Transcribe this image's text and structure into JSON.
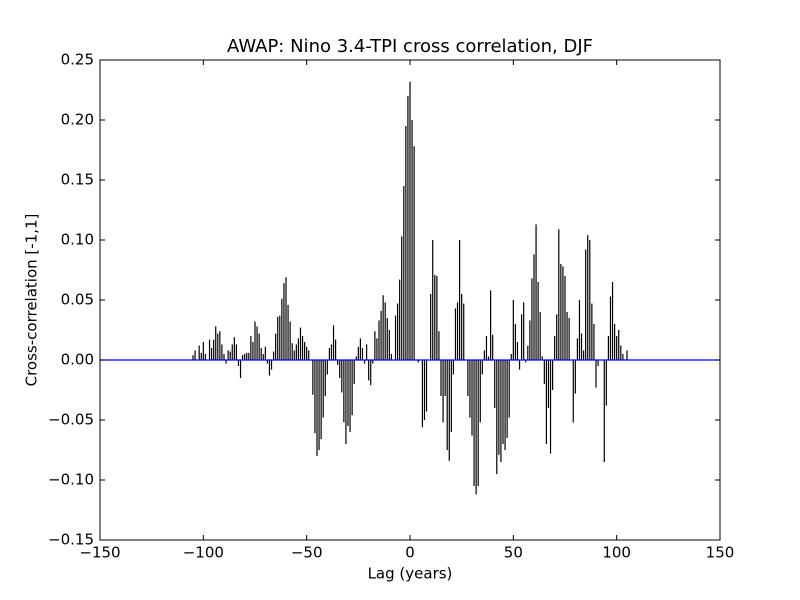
{
  "chart_data": {
    "type": "vlines",
    "title": "AWAP: Nino 3.4-TPI cross correlation, DJF",
    "xlabel": "Lag (years)",
    "ylabel": "Cross-correlation [-1,1]",
    "xlim": [
      -150,
      150
    ],
    "ylim": [
      -0.15,
      0.25
    ],
    "xticks": [
      {
        "value": -150,
        "label": "−150"
      },
      {
        "value": -100,
        "label": "−100"
      },
      {
        "value": -50,
        "label": "−50"
      },
      0,
      50,
      100,
      150
    ],
    "yticks": [
      {
        "value": -0.15,
        "label": "−0.15"
      },
      {
        "value": -0.1,
        "label": "−0.10"
      },
      {
        "value": -0.05,
        "label": "−0.05"
      },
      {
        "value": 0,
        "label": "0.00"
      },
      0.05,
      {
        "value": 0.1,
        "label": "0.10"
      },
      0.15,
      {
        "value": 0.2,
        "label": "0.20"
      },
      0.25
    ],
    "baseline_color": "#0000ff",
    "series": [
      {
        "color": "#000000",
        "x": [
          -105,
          -104,
          -103,
          -102,
          -101,
          -100,
          -99,
          -98,
          -97,
          -96,
          -95,
          -94,
          -93,
          -92,
          -91,
          -90,
          -89,
          -88,
          -87,
          -86,
          -85,
          -84,
          -83,
          -82,
          -81,
          -80,
          -79,
          -78,
          -77,
          -76,
          -75,
          -74,
          -73,
          -72,
          -71,
          -70,
          -69,
          -68,
          -67,
          -66,
          -65,
          -64,
          -63,
          -62,
          -61,
          -60,
          -59,
          -58,
          -57,
          -56,
          -55,
          -54,
          -53,
          -52,
          -51,
          -50,
          -49,
          -48,
          -47,
          -46,
          -45,
          -44,
          -43,
          -42,
          -41,
          -40,
          -39,
          -38,
          -37,
          -36,
          -35,
          -34,
          -33,
          -32,
          -31,
          -30,
          -29,
          -28,
          -27,
          -26,
          -25,
          -24,
          -23,
          -22,
          -21,
          -20,
          -19,
          -18,
          -17,
          -16,
          -15,
          -14,
          -13,
          -12,
          -11,
          -10,
          -9,
          -8,
          -7,
          -6,
          -5,
          -4,
          -3,
          -2,
          -1,
          0,
          1,
          2,
          3,
          4,
          5,
          6,
          7,
          8,
          9,
          10,
          11,
          12,
          13,
          14,
          15,
          16,
          17,
          18,
          19,
          20,
          21,
          22,
          23,
          24,
          25,
          26,
          27,
          28,
          29,
          30,
          31,
          32,
          33,
          34,
          35,
          36,
          37,
          38,
          39,
          40,
          41,
          42,
          43,
          44,
          45,
          46,
          47,
          48,
          49,
          50,
          51,
          52,
          53,
          54,
          55,
          56,
          57,
          58,
          59,
          60,
          61,
          62,
          63,
          64,
          65,
          66,
          67,
          68,
          69,
          70,
          71,
          72,
          73,
          74,
          75,
          76,
          77,
          78,
          79,
          80,
          81,
          82,
          83,
          84,
          85,
          86,
          87,
          88,
          89,
          90,
          91,
          92,
          93,
          94,
          95,
          96,
          97,
          98,
          99,
          100,
          101,
          102,
          103,
          104,
          105
        ],
        "values": [
          0.004,
          0.008,
          0.0,
          0.012,
          0.006,
          0.015,
          0.005,
          0.0,
          0.017,
          0.01,
          0.017,
          0.028,
          0.022,
          0.024,
          0.013,
          0.005,
          -0.003,
          0.008,
          0.007,
          0.013,
          0.019,
          0.013,
          -0.005,
          -0.015,
          0.004,
          0.005,
          0.006,
          0.006,
          0.02,
          0.015,
          0.032,
          0.028,
          0.022,
          0.01,
          0.005,
          0.011,
          -0.003,
          -0.013,
          -0.008,
          0.007,
          0.022,
          0.036,
          0.037,
          0.051,
          0.064,
          0.069,
          0.046,
          0.032,
          0.014,
          0.008,
          0.013,
          0.018,
          0.027,
          0.02,
          0.015,
          0.011,
          0.008,
          0.0,
          -0.029,
          -0.061,
          -0.08,
          -0.075,
          -0.066,
          -0.048,
          -0.03,
          -0.012,
          0.01,
          0.013,
          0.029,
          0.017,
          -0.004,
          -0.015,
          -0.027,
          -0.052,
          -0.07,
          -0.055,
          -0.06,
          -0.046,
          -0.02,
          0.003,
          0.011,
          0.018,
          0.01,
          -0.003,
          0.013,
          -0.017,
          -0.021,
          -0.003,
          0.024,
          0.018,
          0.033,
          0.041,
          0.054,
          0.048,
          0.035,
          0.025,
          0.005,
          0.0,
          0.037,
          0.047,
          0.067,
          0.103,
          0.145,
          0.195,
          0.22,
          0.232,
          0.2,
          0.178,
          0.0,
          -0.002,
          0.0,
          -0.056,
          -0.05,
          -0.043,
          0.0,
          0.055,
          0.1,
          0.071,
          0.07,
          0.024,
          -0.03,
          -0.052,
          -0.03,
          -0.075,
          -0.084,
          -0.06,
          -0.012,
          0.043,
          0.048,
          0.1,
          0.055,
          0.047,
          0.0,
          -0.03,
          -0.048,
          -0.063,
          -0.105,
          -0.112,
          -0.105,
          -0.052,
          -0.012,
          0.008,
          0.02,
          0.003,
          0.058,
          0.021,
          -0.04,
          -0.095,
          -0.079,
          -0.085,
          -0.07,
          -0.075,
          -0.065,
          -0.048,
          0.005,
          0.05,
          0.03,
          0.015,
          -0.008,
          0.038,
          0.048,
          -0.002,
          0.012,
          0.033,
          0.068,
          0.088,
          0.113,
          0.065,
          0.04,
          0.003,
          -0.02,
          -0.07,
          -0.04,
          -0.078,
          -0.025,
          0.02,
          0.038,
          0.109,
          0.08,
          0.078,
          0.07,
          0.04,
          0.035,
          0.0,
          -0.052,
          -0.028,
          0.018,
          0.05,
          0.022,
          0.008,
          0.092,
          0.104,
          0.1,
          0.047,
          0.03,
          -0.023,
          -0.005,
          0.0,
          0.0,
          -0.085,
          -0.038,
          0.02,
          0.053,
          0.065,
          0.03,
          0.02,
          0.025,
          0.012,
          0.005,
          0.0,
          0.008
        ]
      }
    ]
  }
}
